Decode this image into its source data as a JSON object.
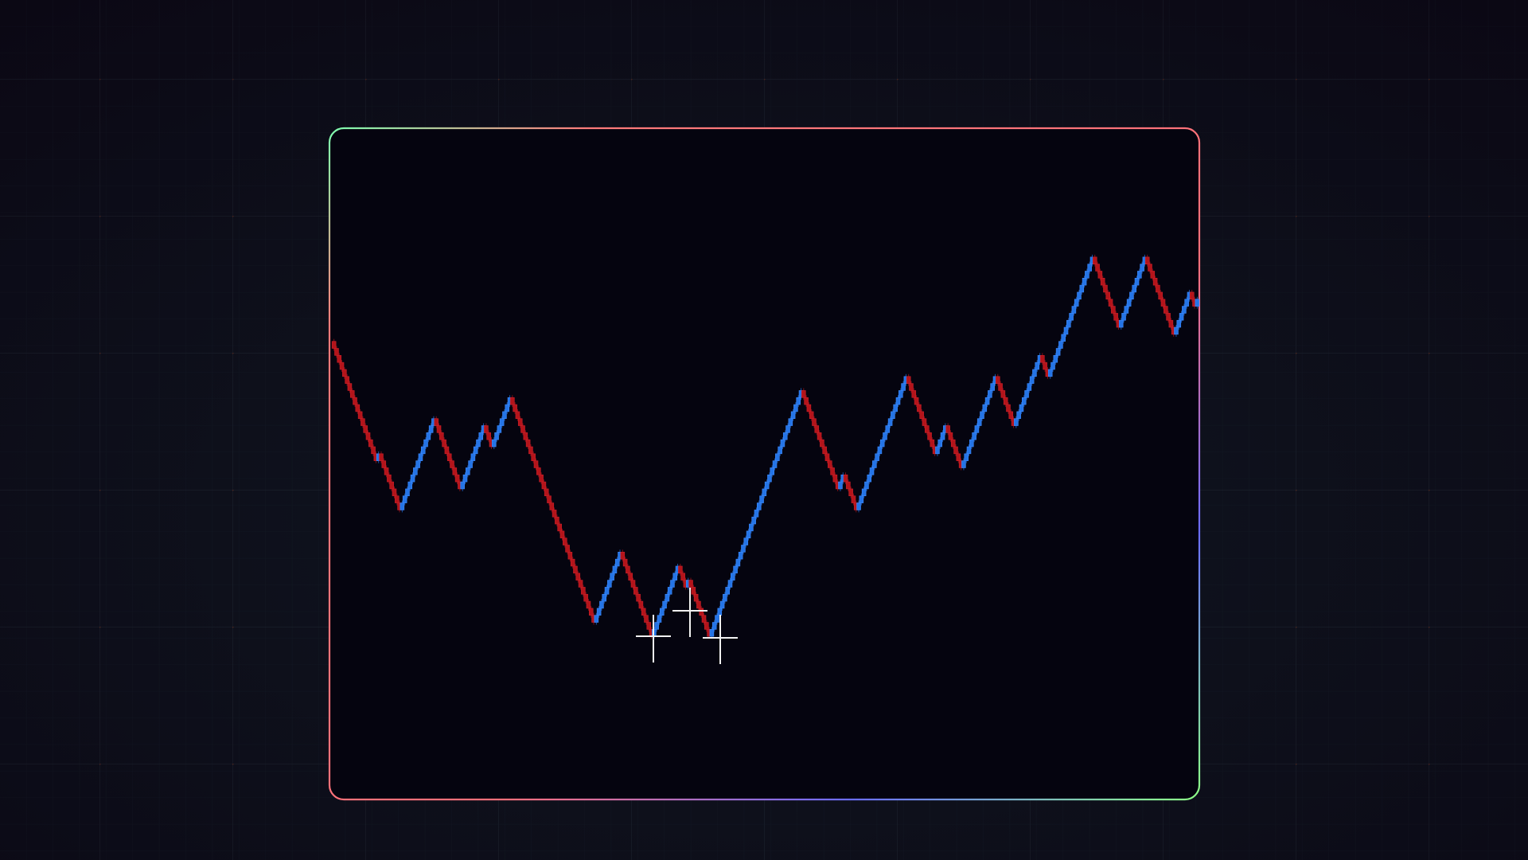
{
  "chart_data": {
    "type": "renko",
    "values": [
      42,
      26,
      27,
      19,
      32,
      22,
      31,
      28,
      35,
      3,
      13,
      1,
      11,
      8,
      9,
      1,
      36,
      22,
      24,
      19,
      38,
      27,
      31,
      25,
      38,
      31,
      41,
      38,
      55,
      45,
      55,
      44,
      50,
      48,
      49
    ],
    "brick_size": 1,
    "ylim": [
      0,
      56
    ],
    "up_color": "#2474e6",
    "down_color": "#b3141a"
  }
}
